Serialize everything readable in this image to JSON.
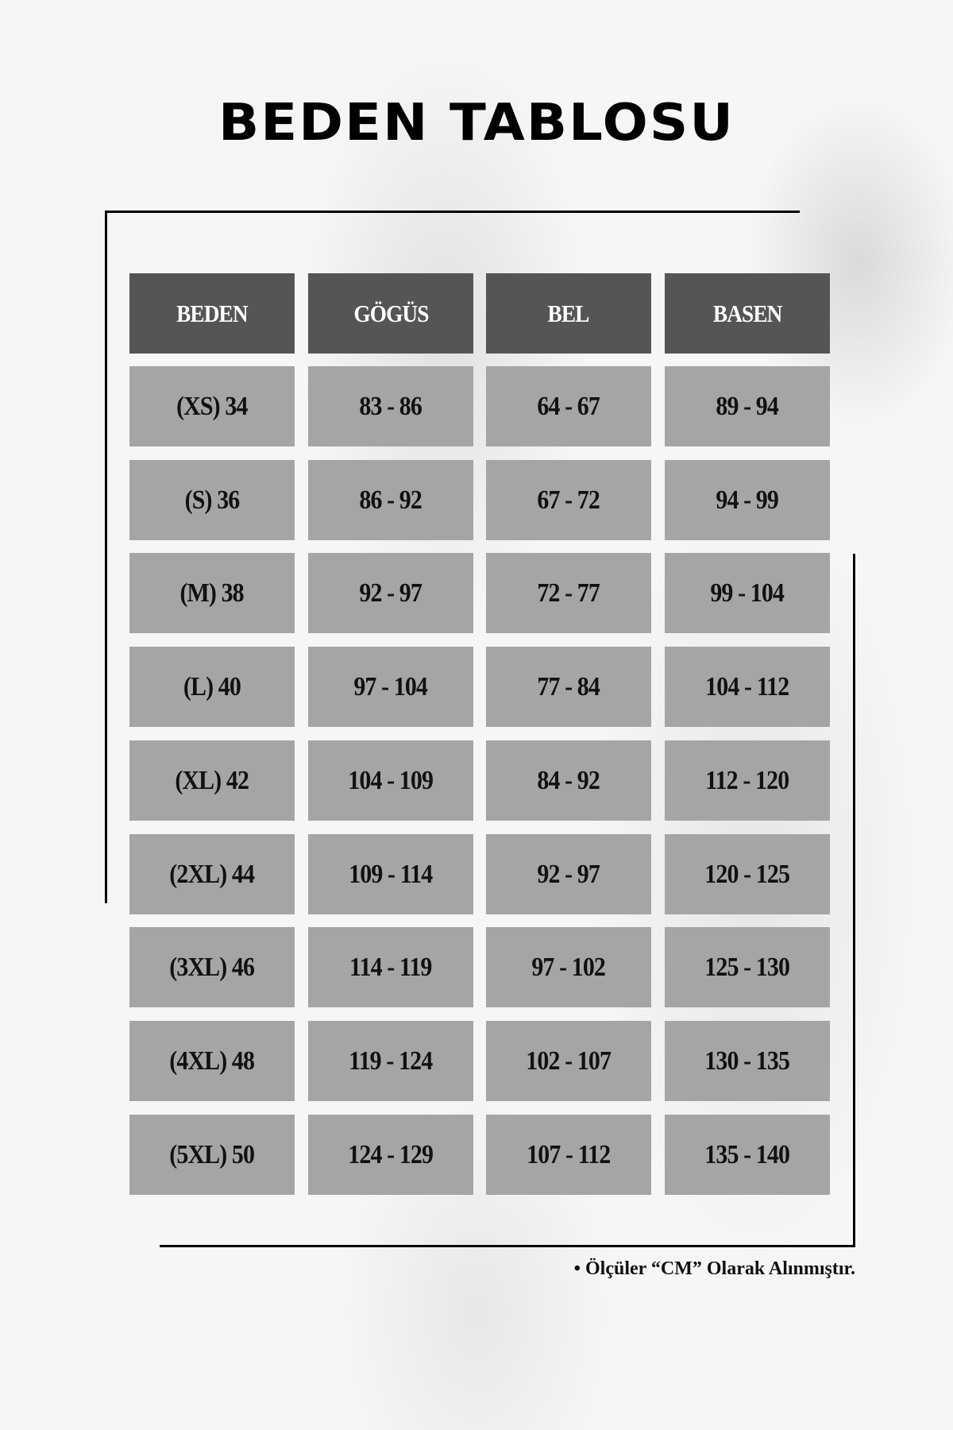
{
  "title": "BEDEN TABLOSU",
  "table": {
    "headers": [
      "BEDEN",
      "GÖGÜS",
      "BEL",
      "BASEN"
    ],
    "rows": [
      [
        "(XS) 34",
        "83 - 86",
        "64 - 67",
        "89 - 94"
      ],
      [
        "(S) 36",
        "86 - 92",
        "67 - 72",
        "94 - 99"
      ],
      [
        "(M) 38",
        "92 - 97",
        "72 - 77",
        "99 - 104"
      ],
      [
        "(L) 40",
        "97 - 104",
        "77 - 84",
        "104 - 112"
      ],
      [
        "(XL) 42",
        "104 - 109",
        "84 - 92",
        "112 - 120"
      ],
      [
        "(2XL) 44",
        "109 - 114",
        "92 - 97",
        "120 - 125"
      ],
      [
        "(3XL) 46",
        "114 - 119",
        "97 - 102",
        "125 - 130"
      ],
      [
        "(4XL) 48",
        "119 - 124",
        "102 - 107",
        "130 - 135"
      ],
      [
        "(5XL) 50",
        "124 - 129",
        "107 - 112",
        "135 - 140"
      ]
    ]
  },
  "note": "• Ölçüler “CM” Olarak Alınmıştır.",
  "colors": {
    "header_bg": "#555555",
    "cell_bg": "#a5a5a5",
    "frame": "#000000"
  }
}
